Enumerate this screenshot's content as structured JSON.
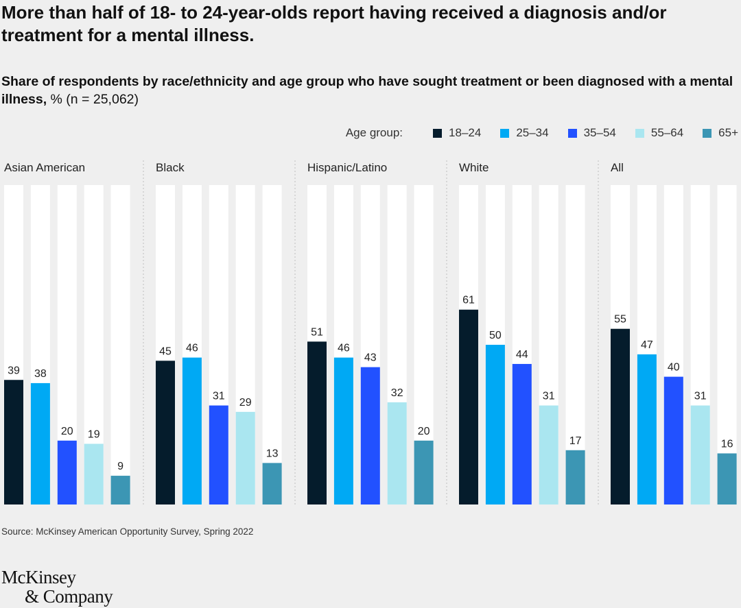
{
  "title": "More than half of 18- to 24-year-olds report having received a diagnosis and/or treatment for a mental illness.",
  "subtitle_bold": "Share of respondents by race/ethnicity and age group who have sought treatment or been diagnosed with a mental illness,",
  "subtitle_rest": " % (n = 25,062)",
  "legend_title": "Age group:",
  "source": "Source: McKinsey American Opportunity Survey, Spring 2022",
  "logo": {
    "line1": "McKinsey",
    "line2": "& Company"
  },
  "colors": {
    "background": "#efefef",
    "bar_track": "#ffffff",
    "divider": "#bdbdbd",
    "series": [
      "#051c2c",
      "#00a9f4",
      "#2251ff",
      "#aae6f0",
      "#3c96b4"
    ]
  },
  "chart_data": {
    "type": "bar",
    "ylim": [
      0,
      100
    ],
    "grid": false,
    "legend_position": "top-right",
    "series_names": [
      "18–24",
      "25–34",
      "35–54",
      "55–64",
      "65+"
    ],
    "groups": [
      {
        "label": "Asian American",
        "values": [
          39,
          38,
          20,
          19,
          9
        ]
      },
      {
        "label": "Black",
        "values": [
          45,
          46,
          31,
          29,
          13
        ]
      },
      {
        "label": "Hispanic/Latino",
        "values": [
          51,
          46,
          43,
          32,
          20
        ]
      },
      {
        "label": "White",
        "values": [
          61,
          50,
          44,
          31,
          17
        ]
      },
      {
        "label": "All",
        "values": [
          55,
          47,
          40,
          31,
          16
        ]
      }
    ]
  }
}
